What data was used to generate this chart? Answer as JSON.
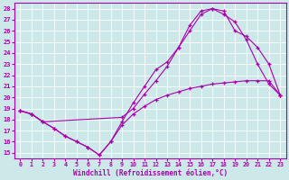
{
  "xlabel": "Windchill (Refroidissement éolien,°C)",
  "bg_color": "#cce8e8",
  "line_color": "#aa00aa",
  "grid_color": "#b0d8d8",
  "xlim": [
    -0.5,
    23.5
  ],
  "ylim": [
    14.5,
    28.5
  ],
  "xticks": [
    0,
    1,
    2,
    3,
    4,
    5,
    6,
    7,
    8,
    9,
    10,
    11,
    12,
    13,
    14,
    15,
    16,
    17,
    18,
    19,
    20,
    21,
    22,
    23
  ],
  "yticks": [
    15,
    16,
    17,
    18,
    19,
    20,
    21,
    22,
    23,
    24,
    25,
    26,
    27,
    28
  ],
  "line1_x": [
    0,
    1,
    2,
    3,
    4,
    5,
    6,
    7,
    8,
    9,
    10,
    11,
    12,
    13,
    14,
    15,
    16,
    17,
    18,
    19,
    20,
    21,
    22,
    23
  ],
  "line1_y": [
    18.8,
    18.5,
    17.8,
    17.2,
    16.5,
    16.0,
    15.5,
    14.8,
    16.0,
    17.8,
    19.5,
    21.0,
    22.5,
    23.2,
    24.5,
    26.0,
    27.5,
    28.0,
    27.5,
    26.8,
    25.2,
    23.0,
    21.2,
    20.2
  ],
  "line2_x": [
    0,
    1,
    2,
    9,
    10,
    11,
    12,
    13,
    14,
    15,
    16,
    17,
    18,
    19,
    20,
    21,
    22,
    23
  ],
  "line2_y": [
    18.8,
    18.5,
    17.8,
    18.2,
    19.0,
    20.3,
    21.5,
    22.8,
    24.5,
    26.5,
    27.8,
    28.0,
    27.8,
    26.0,
    25.5,
    24.5,
    23.0,
    20.2
  ],
  "line3_x": [
    0,
    1,
    2,
    3,
    4,
    5,
    6,
    7,
    8,
    9,
    10,
    11,
    12,
    13,
    14,
    15,
    16,
    17,
    18,
    19,
    20,
    21,
    22,
    23
  ],
  "line3_y": [
    18.8,
    18.5,
    17.8,
    17.2,
    16.5,
    16.0,
    15.5,
    14.8,
    16.0,
    17.5,
    18.5,
    19.2,
    19.8,
    20.2,
    20.5,
    20.8,
    21.0,
    21.2,
    21.3,
    21.4,
    21.5,
    21.5,
    21.5,
    20.2
  ]
}
